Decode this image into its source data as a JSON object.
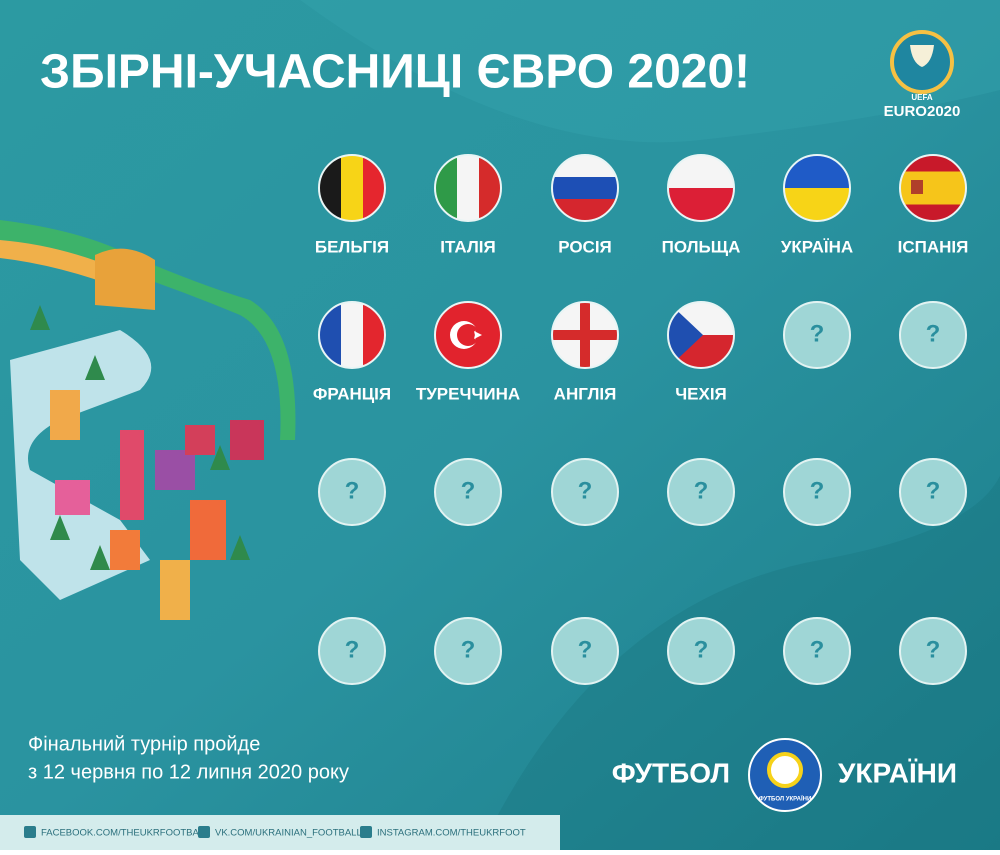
{
  "header": {
    "title": "ЗБІРНІ-УЧАСНИЦІ ЄВРО 2020!",
    "logo": {
      "org": "UEFA",
      "text": "EURO2020"
    }
  },
  "teams": [
    {
      "name": "БЕЛЬГІЯ"
    },
    {
      "name": "ІТАЛІЯ"
    },
    {
      "name": "РОСІЯ"
    },
    {
      "name": "ПОЛЬЩА"
    },
    {
      "name": "УКРАЇНА"
    },
    {
      "name": "ІСПАНІЯ"
    },
    {
      "name": "ФРАНЦІЯ"
    },
    {
      "name": "ТУРЕЧЧИНА"
    },
    {
      "name": "АНГЛІЯ"
    },
    {
      "name": "ЧЕХІЯ"
    }
  ],
  "placeholders": [
    "?",
    "?",
    "?",
    "?",
    "?",
    "?",
    "?",
    "?",
    "?",
    "?",
    "?",
    "?",
    "?",
    "?"
  ],
  "footer": {
    "info": [
      "Фінальний турнір пройде",
      "з 12 червня по 12 липня 2020 року"
    ],
    "brand": {
      "left": "ФУТБОЛ",
      "right": "УКРАЇНИ",
      "badge": "ФУТБОЛ УКРАЇНИ"
    },
    "social": [
      "FACEBOOK.COM/THEUKRFOOTBALL",
      "VK.COM/UKRAINIAN_FOOTBALL",
      "INSTAGRAM.COM/THEUKRFOOT"
    ]
  }
}
